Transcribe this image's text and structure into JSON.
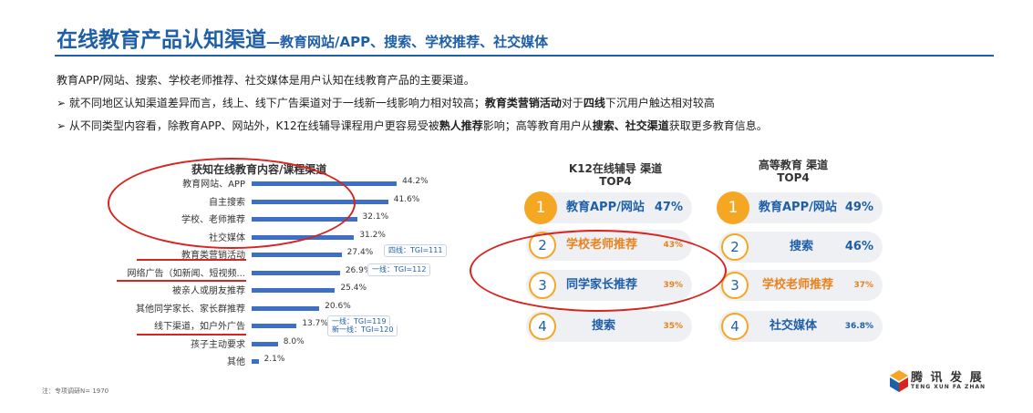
{
  "header": {
    "title_main": "在线教育产品认知渠道",
    "title_sub": "—教育网站/APP、搜索、学校推荐、社交媒体"
  },
  "intro": {
    "line1": "教育APP/网站、搜索、学校老师推荐、社交媒体是用户认知在线教育产品的主要渠道。",
    "line2_a": "➢ 就不同地区认知渠道差异而言，线上、线下广告渠道对于一线新一线影响力相对较高；",
    "line2_b": "教育类营销活动",
    "line2_c": "对于",
    "line2_d": "四线",
    "line2_e": "下沉用户触达相对较高",
    "line3_a": "➢ 从不同类型内容看，除教育APP、网站外，K12在线辅导课程用户更容易受被",
    "line3_b": "熟人推荐",
    "line3_c": "影响；高等教育用户从",
    "line3_d": "搜索、社交渠道",
    "line3_e": "获取更多教育信息。"
  },
  "chart_data": {
    "type": "bar",
    "orientation": "horizontal",
    "title": "获知在线教育内容/课程渠道",
    "categories": [
      "教育网站、APP",
      "自主搜索",
      "学校、老师推荐",
      "社交媒体",
      "教育类营销活动",
      "网络广告（如新闻、短视频...",
      "被亲人或朋友推荐",
      "其他同学家长、家长群推荐",
      "线下渠道，如户外广告",
      "孩子主动要求",
      "其他"
    ],
    "values": [
      44.2,
      41.6,
      32.1,
      31.2,
      27.4,
      26.9,
      25.4,
      20.6,
      13.7,
      8.0,
      2.1
    ],
    "value_labels": [
      "44.2%",
      "41.6%",
      "32.1%",
      "31.2%",
      "27.4%",
      "26.9%",
      "25.4%",
      "20.6%",
      "13.7%",
      "8.0%",
      "2.1%"
    ],
    "annotations": [
      "四线：TGI=111",
      "一线：TGI=112",
      "一线：TGI=119",
      "新一线：TGI=120"
    ],
    "xlim": [
      0,
      50
    ]
  },
  "k12": {
    "title_l1": "K12在线辅导 渠道",
    "title_l2": "TOP4",
    "items": [
      {
        "num": "1",
        "label": "教育APP/网站",
        "pct": "47%"
      },
      {
        "num": "2",
        "label": "学校老师推荐",
        "pct": "43%"
      },
      {
        "num": "3",
        "label": "同学家长推荐",
        "pct": "39%"
      },
      {
        "num": "4",
        "label": "搜索",
        "pct": "35%"
      }
    ]
  },
  "higher": {
    "title_l1": "高等教育 渠道",
    "title_l2": "TOP4",
    "items": [
      {
        "num": "1",
        "label": "教育APP/网站",
        "pct": "49%"
      },
      {
        "num": "2",
        "label": "搜索",
        "pct": "46%"
      },
      {
        "num": "3",
        "label": "学校老师推荐",
        "pct": "37%"
      },
      {
        "num": "4",
        "label": "社交媒体",
        "pct": "36.8%"
      }
    ]
  },
  "colors": {
    "accent": "#1f5fa8",
    "bar": "#3d6fc4",
    "highlight": "#f5a623",
    "red": "#d9231f",
    "orange_text": "#e8821e"
  },
  "footer": {
    "note": "注：专项调研N= 1970",
    "logo_cn": "腾 讯 发 展",
    "logo_en": "TENG XUN FA ZHAN",
    "logo_icon": "tengxun-logo-icon"
  }
}
